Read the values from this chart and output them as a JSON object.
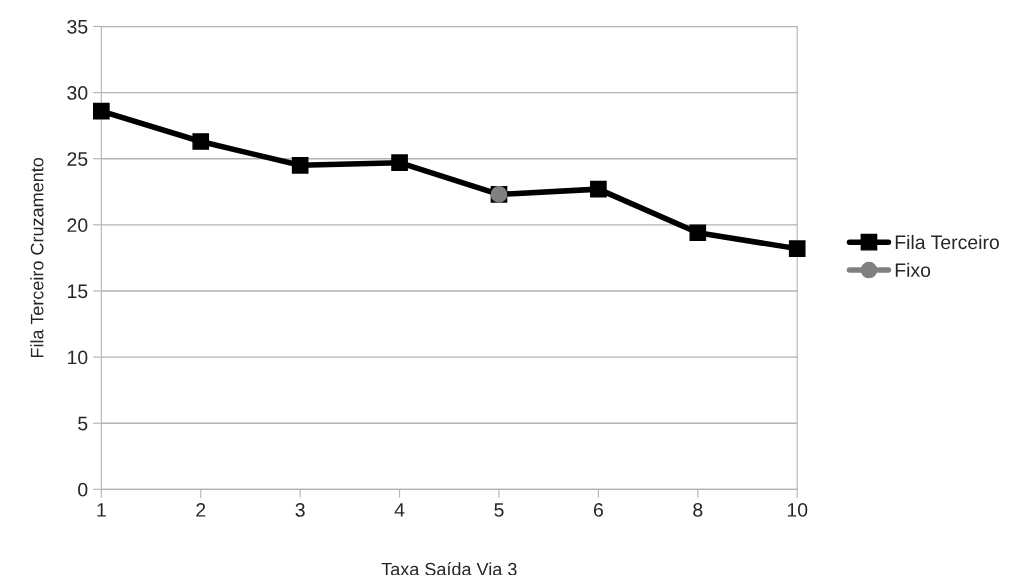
{
  "chart_data": {
    "type": "line",
    "xlabel": "Taxa Saída Via 3",
    "ylabel": "Fila Terceiro Cruzamento",
    "categories": [
      "1",
      "2",
      "3",
      "4",
      "5",
      "6",
      "8",
      "10"
    ],
    "series": [
      {
        "name": "Fila Terceiro",
        "color": "#000000",
        "marker": "square",
        "values": [
          28.6,
          26.3,
          24.5,
          24.7,
          22.3,
          22.7,
          19.4,
          18.2
        ]
      },
      {
        "name": "Fixo",
        "color": "#808080",
        "marker": "circle",
        "values": [
          null,
          null,
          null,
          null,
          22.3,
          null,
          null,
          null
        ]
      }
    ],
    "ylim": [
      0,
      35
    ],
    "yticks": [
      0,
      5,
      10,
      15,
      20,
      25,
      30,
      35
    ],
    "grid": "y",
    "legend": "right"
  }
}
